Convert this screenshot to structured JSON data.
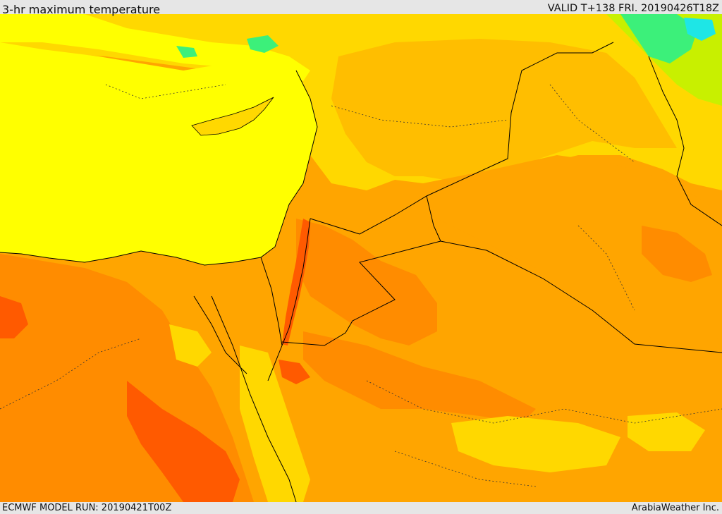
{
  "header": {
    "title": "3-hr maximum temperature",
    "valid": "VALID T+138 FRI. 20190426T18Z"
  },
  "footer": {
    "model_run": "ECMWF MODEL RUN: 20190421T00Z",
    "credit": "ArabiaWeather Inc."
  },
  "map": {
    "field": "3-hr maximum temperature",
    "colors": {
      "cool_cyan": "#1ee6e6",
      "cool_green": "#3cf07a",
      "lime": "#c8f000",
      "yellow": "#ffff00",
      "gold": "#ffd800",
      "light_orange": "#ffbe00",
      "orange": "#ffa500",
      "dark_orange": "#ff8c00",
      "red_orange": "#ff5a00",
      "sea": "#ffff00",
      "borders": "#000000"
    }
  }
}
